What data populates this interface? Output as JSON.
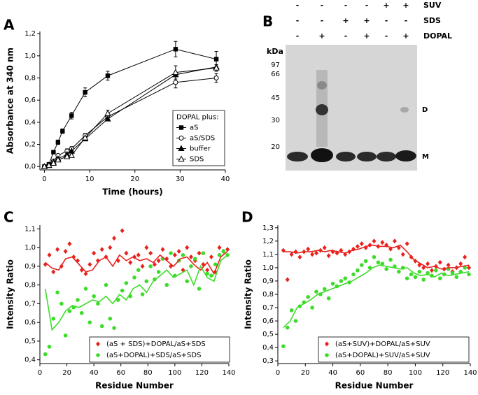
{
  "chart_data": [
    {
      "type": "line",
      "panel_label": "A",
      "x_label": "Time (hours)",
      "y_label": "Absorbance at 340 nm",
      "xlim": [
        -1,
        40
      ],
      "xticks": [
        0,
        10,
        20,
        30,
        40
      ],
      "ylim": [
        -0.03,
        1.22
      ],
      "yticks": [
        {
          "value": 0,
          "label": "0,0"
        },
        {
          "value": 0.2,
          "label": "0,2"
        },
        {
          "value": 0.4,
          "label": "0,4"
        },
        {
          "value": 0.6,
          "label": "0,6"
        },
        {
          "value": 0.8,
          "label": "0,8"
        },
        {
          "value": 1.0,
          "label": "1,0"
        },
        {
          "value": 1.2,
          "label": "1,2"
        }
      ],
      "legend_title": "DOPAL plus:",
      "legend": "lower right",
      "series": [
        {
          "name": "aS",
          "color": "#000000",
          "marker": "square",
          "line": true,
          "x": [
            0,
            1,
            2,
            3,
            4,
            6,
            9,
            14,
            29,
            38
          ],
          "values": [
            0,
            0.02,
            0.13,
            0.22,
            0.32,
            0.46,
            0.67,
            0.82,
            1.06,
            0.97
          ],
          "errors": [
            0,
            0.01,
            0.01,
            0.02,
            0.02,
            0.03,
            0.04,
            0.04,
            0.07,
            0.07
          ]
        },
        {
          "name": "aS/SDS",
          "color": "#000000",
          "marker": "circle-open",
          "line": true,
          "x": [
            0,
            1,
            2,
            3,
            5,
            6,
            9,
            14,
            29,
            38
          ],
          "values": [
            0,
            0.01,
            0.05,
            0.1,
            0.14,
            0.16,
            0.28,
            0.45,
            0.76,
            0.8
          ],
          "errors": [
            0,
            0.01,
            0.01,
            0.01,
            0.02,
            0.02,
            0.02,
            0.03,
            0.05,
            0.04
          ]
        },
        {
          "name": "buffer",
          "color": "#000000",
          "marker": "triangle",
          "line": true,
          "x": [
            0,
            1,
            2,
            3,
            5,
            6,
            9,
            14,
            29,
            38
          ],
          "values": [
            0,
            0.01,
            0.04,
            0.07,
            0.11,
            0.14,
            0.25,
            0.43,
            0.83,
            0.9
          ]
        },
        {
          "name": "SDS",
          "color": "#000000",
          "marker": "triangle-open",
          "line": true,
          "x": [
            0,
            1,
            2,
            3,
            5,
            6,
            9,
            14,
            29,
            38
          ],
          "values": [
            0,
            0.01,
            0.03,
            0.06,
            0.09,
            0.1,
            0.26,
            0.48,
            0.85,
            0.89
          ],
          "errors": [
            0,
            0,
            0.01,
            0.01,
            0.01,
            0.01,
            0.01,
            0.03,
            0.06,
            0.03
          ]
        }
      ]
    },
    {
      "type": "scatter",
      "panel_label": "C",
      "x_label": "Residue Number",
      "y_label": "Intensity Ratio",
      "xlim": [
        0,
        140
      ],
      "xticks": [
        0,
        20,
        40,
        60,
        80,
        100,
        120,
        140
      ],
      "ylim": [
        0.38,
        1.12
      ],
      "yticks": [
        {
          "value": 0.4,
          "label": "0,4"
        },
        {
          "value": 0.5,
          "label": "0,5"
        },
        {
          "value": 0.6,
          "label": "0,6"
        },
        {
          "value": 0.7,
          "label": "0,7"
        },
        {
          "value": 0.8,
          "label": "0,8"
        },
        {
          "value": 0.9,
          "label": "0,9"
        },
        {
          "value": 1.0,
          "label": "1,0"
        },
        {
          "value": 1.1,
          "label": "1,1"
        }
      ],
      "legend": "lower center",
      "series": [
        {
          "name": "(aS + SDS)+DOPAL/aS+SDS",
          "color": "#e8221e",
          "marker": "diamond",
          "line": false,
          "x": [
            4,
            7,
            10,
            13,
            16,
            19,
            22,
            25,
            28,
            31,
            34,
            37,
            40,
            43,
            46,
            49,
            52,
            55,
            58,
            61,
            64,
            67,
            70,
            73,
            76,
            79,
            82,
            85,
            88,
            91,
            94,
            97,
            100,
            103,
            106,
            109,
            112,
            115,
            118,
            121,
            124,
            127,
            130,
            133,
            136,
            139
          ],
          "values": [
            0.91,
            0.96,
            0.87,
            0.99,
            0.9,
            0.98,
            1.02,
            0.95,
            0.93,
            0.88,
            0.86,
            0.91,
            0.97,
            0.93,
            0.99,
            0.95,
            1.0,
            1.05,
            0.93,
            1.09,
            0.97,
            0.92,
            0.95,
            0.96,
            0.9,
            1.0,
            0.97,
            0.91,
            0.93,
            0.99,
            0.94,
            0.9,
            0.96,
            0.98,
            0.88,
            1.0,
            0.95,
            0.93,
            0.97,
            0.91,
            0.88,
            0.95,
            0.87,
            1.0,
            0.98,
            0.99
          ]
        },
        {
          "name": "(aS+DOPAL)+SDS/aS+SDS",
          "color": "#3edc2a",
          "marker": "circle",
          "line": false,
          "x": [
            4,
            7,
            10,
            13,
            16,
            19,
            22,
            25,
            28,
            31,
            34,
            37,
            40,
            43,
            46,
            49,
            52,
            55,
            58,
            61,
            64,
            67,
            70,
            73,
            76,
            79,
            82,
            85,
            88,
            91,
            94,
            97,
            100,
            103,
            106,
            109,
            112,
            115,
            118,
            121,
            124,
            127,
            130,
            133,
            136,
            139
          ],
          "values": [
            0.43,
            0.47,
            0.62,
            0.76,
            0.7,
            0.53,
            0.66,
            0.68,
            0.72,
            0.65,
            0.78,
            0.6,
            0.74,
            0.7,
            0.58,
            0.8,
            0.62,
            0.57,
            0.72,
            0.77,
            0.81,
            0.74,
            0.84,
            0.88,
            0.75,
            0.82,
            0.9,
            0.83,
            0.87,
            0.94,
            0.8,
            0.97,
            0.85,
            0.93,
            0.96,
            0.82,
            0.9,
            0.94,
            0.78,
            0.97,
            0.86,
            0.85,
            0.91,
            0.96,
            0.98,
            0.96
          ]
        },
        {
          "color": "#e8221e",
          "marker": "none",
          "line": true,
          "x": [
            4,
            9,
            14,
            19,
            24,
            29,
            34,
            39,
            44,
            49,
            54,
            59,
            64,
            69,
            74,
            79,
            84,
            89,
            94,
            99,
            104,
            109,
            114,
            119,
            124,
            129,
            134,
            139
          ],
          "values": [
            0.92,
            0.89,
            0.88,
            0.94,
            0.95,
            0.91,
            0.87,
            0.88,
            0.93,
            0.95,
            0.9,
            0.96,
            0.93,
            0.95,
            0.93,
            0.94,
            0.92,
            0.96,
            0.93,
            0.9,
            0.94,
            0.95,
            0.91,
            0.88,
            0.92,
            0.86,
            0.95,
            0.98
          ]
        },
        {
          "color": "#3edc2a",
          "marker": "none",
          "line": true,
          "x": [
            4,
            9,
            14,
            19,
            24,
            29,
            34,
            39,
            44,
            49,
            54,
            59,
            64,
            69,
            74,
            79,
            84,
            89,
            94,
            99,
            104,
            109,
            114,
            119,
            124,
            129,
            134,
            139
          ],
          "values": [
            0.78,
            0.56,
            0.6,
            0.66,
            0.69,
            0.68,
            0.7,
            0.72,
            0.71,
            0.74,
            0.7,
            0.75,
            0.72,
            0.78,
            0.8,
            0.76,
            0.82,
            0.85,
            0.88,
            0.84,
            0.86,
            0.88,
            0.8,
            0.9,
            0.84,
            0.82,
            0.93,
            0.96
          ]
        }
      ]
    },
    {
      "type": "scatter",
      "panel_label": "D",
      "x_label": "Residue Number",
      "y_label": "Intensity Ratio",
      "xlim": [
        0,
        140
      ],
      "xticks": [
        0,
        20,
        40,
        60,
        80,
        100,
        120,
        140
      ],
      "ylim": [
        0.28,
        1.32
      ],
      "yticks": [
        {
          "value": 0.3,
          "label": "0,3"
        },
        {
          "value": 0.4,
          "label": "0,4"
        },
        {
          "value": 0.5,
          "label": "0,5"
        },
        {
          "value": 0.6,
          "label": "0,6"
        },
        {
          "value": 0.7,
          "label": "0,7"
        },
        {
          "value": 0.8,
          "label": "0,8"
        },
        {
          "value": 0.9,
          "label": "0,9"
        },
        {
          "value": 1.0,
          "label": "1,0"
        },
        {
          "value": 1.1,
          "label": "1,1"
        },
        {
          "value": 1.2,
          "label": "1,2"
        },
        {
          "value": 1.3,
          "label": "1,3"
        }
      ],
      "legend": "lower center",
      "series": [
        {
          "name": "(aS+SUV)+DOPAL/aS+SUV",
          "color": "#e8221e",
          "marker": "diamond",
          "line": false,
          "x": [
            4,
            7,
            10,
            13,
            16,
            19,
            22,
            25,
            28,
            31,
            34,
            37,
            40,
            43,
            46,
            49,
            52,
            55,
            58,
            61,
            64,
            67,
            70,
            73,
            76,
            79,
            82,
            85,
            88,
            91,
            94,
            97,
            100,
            103,
            106,
            109,
            112,
            115,
            118,
            121,
            124,
            127,
            130,
            133,
            136,
            139
          ],
          "values": [
            1.13,
            0.91,
            1.1,
            1.12,
            1.08,
            1.12,
            1.14,
            1.1,
            1.11,
            1.13,
            1.15,
            1.09,
            1.12,
            1.11,
            1.13,
            1.1,
            1.12,
            1.14,
            1.16,
            1.18,
            1.15,
            1.17,
            1.2,
            1.16,
            1.19,
            1.17,
            1.14,
            1.2,
            1.15,
            1.1,
            1.18,
            1.08,
            1.05,
            1.02,
            1.0,
            1.03,
            0.98,
            1.01,
            1.04,
            0.99,
            1.02,
            0.97,
            1.0,
            1.03,
            1.08,
            1.0
          ]
        },
        {
          "name": "(aS+DOPAL)+SUV/aS+SUV",
          "color": "#3edc2a",
          "marker": "circle",
          "line": false,
          "x": [
            4,
            7,
            10,
            13,
            16,
            19,
            22,
            25,
            28,
            31,
            34,
            37,
            40,
            43,
            46,
            49,
            52,
            55,
            58,
            61,
            64,
            67,
            70,
            73,
            76,
            79,
            82,
            85,
            88,
            91,
            94,
            97,
            100,
            103,
            106,
            109,
            112,
            115,
            118,
            121,
            124,
            127,
            130,
            133,
            136,
            139
          ],
          "values": [
            0.41,
            0.55,
            0.68,
            0.6,
            0.71,
            0.74,
            0.78,
            0.7,
            0.82,
            0.8,
            0.84,
            0.77,
            0.88,
            0.86,
            0.9,
            0.92,
            0.89,
            0.95,
            0.98,
            1.02,
            1.05,
            1.0,
            1.08,
            1.04,
            1.03,
            0.99,
            1.06,
            1.01,
            0.97,
            1.0,
            0.92,
            0.95,
            0.93,
            0.97,
            0.91,
            0.96,
            0.94,
            0.98,
            0.92,
            0.95,
            0.99,
            0.96,
            0.93,
            0.97,
            1.0,
            0.95
          ]
        },
        {
          "color": "#e8221e",
          "marker": "none",
          "line": true,
          "x": [
            4,
            9,
            14,
            19,
            24,
            29,
            34,
            39,
            44,
            49,
            54,
            59,
            64,
            69,
            74,
            79,
            84,
            89,
            94,
            99,
            104,
            109,
            114,
            119,
            124,
            129,
            134,
            139
          ],
          "values": [
            1.12,
            1.12,
            1.11,
            1.12,
            1.12,
            1.13,
            1.12,
            1.13,
            1.12,
            1.11,
            1.13,
            1.14,
            1.16,
            1.17,
            1.16,
            1.16,
            1.15,
            1.17,
            1.12,
            1.06,
            1.03,
            1.0,
            1.01,
            0.99,
            1.0,
            1.0,
            1.01,
            1.02
          ]
        },
        {
          "color": "#3edc2a",
          "marker": "none",
          "line": true,
          "x": [
            4,
            9,
            14,
            19,
            24,
            29,
            34,
            39,
            44,
            49,
            54,
            59,
            64,
            69,
            74,
            79,
            84,
            89,
            94,
            99,
            104,
            109,
            114,
            119,
            124,
            129,
            134,
            139
          ],
          "values": [
            0.55,
            0.6,
            0.7,
            0.73,
            0.76,
            0.8,
            0.82,
            0.84,
            0.86,
            0.88,
            0.9,
            0.93,
            0.96,
            1.0,
            1.02,
            1.01,
            1.0,
            0.99,
            1.0,
            0.96,
            0.94,
            0.95,
            0.93,
            0.96,
            0.94,
            0.95,
            0.96,
            0.97
          ]
        }
      ]
    }
  ],
  "gel": {
    "panel_label": "B",
    "rows": [
      {
        "label": "SUV",
        "signs": [
          "-",
          "-",
          "-",
          "-",
          "+",
          "+"
        ]
      },
      {
        "label": "SDS",
        "signs": [
          "-",
          "-",
          "+",
          "+",
          "-",
          "-"
        ]
      },
      {
        "label": "DOPAL",
        "signs": [
          "-",
          "+",
          "-",
          "+",
          "-",
          "+"
        ]
      }
    ],
    "marker_unit": "kDa",
    "markers": [
      "97",
      "66",
      "45",
      "30",
      "20"
    ],
    "bands": [
      "D",
      "M"
    ]
  }
}
